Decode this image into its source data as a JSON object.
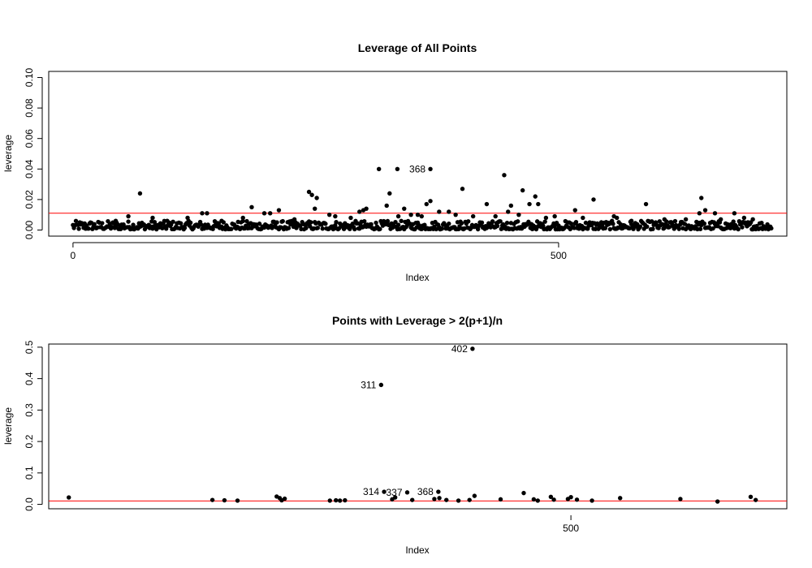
{
  "chart_data": [
    {
      "type": "scatter",
      "title": "Leverage of All Points",
      "xlabel": "Index",
      "ylabel": "leverage",
      "xlim": [
        -25,
        735
      ],
      "ylim": [
        -0.004,
        0.104
      ],
      "x_ticks": [
        0,
        500
      ],
      "y_ticks": [
        0.0,
        0.02,
        0.04,
        0.06,
        0.08,
        0.1
      ],
      "y_tick_labels": [
        "0.00",
        "0.02",
        "0.04",
        "0.06",
        "0.08",
        "0.10"
      ],
      "hline": {
        "y": 0.011,
        "color": "#ff0000"
      },
      "labels": [
        {
          "text": "368",
          "x": 368,
          "y": 0.04
        }
      ],
      "points": [
        [
          69,
          0.024
        ],
        [
          184,
          0.015
        ],
        [
          243,
          0.025
        ],
        [
          246,
          0.023
        ],
        [
          251,
          0.021
        ],
        [
          249,
          0.014
        ],
        [
          315,
          0.04
        ],
        [
          334,
          0.04
        ],
        [
          368,
          0.04
        ],
        [
          326,
          0.024
        ],
        [
          323,
          0.016
        ],
        [
          341,
          0.014
        ],
        [
          364,
          0.017
        ],
        [
          368,
          0.019
        ],
        [
          377,
          0.012
        ],
        [
          387,
          0.012
        ],
        [
          401,
          0.027
        ],
        [
          426,
          0.017
        ],
        [
          444,
          0.036
        ],
        [
          451,
          0.016
        ],
        [
          448,
          0.012
        ],
        [
          463,
          0.026
        ],
        [
          476,
          0.022
        ],
        [
          470,
          0.017
        ],
        [
          479,
          0.017
        ],
        [
          517,
          0.013
        ],
        [
          536,
          0.02
        ],
        [
          557,
          0.009
        ],
        [
          590,
          0.017
        ],
        [
          645,
          0.011
        ],
        [
          647,
          0.021
        ],
        [
          651,
          0.013
        ],
        [
          661,
          0.011
        ],
        [
          681,
          0.011
        ],
        [
          691,
          0.008
        ],
        [
          133,
          0.011
        ],
        [
          138,
          0.011
        ],
        [
          212,
          0.013
        ],
        [
          299,
          0.013
        ],
        [
          302,
          0.014
        ],
        [
          295,
          0.012
        ],
        [
          286,
          0.008
        ],
        [
          203,
          0.011
        ],
        [
          153,
          0.006
        ],
        [
          175,
          0.008
        ],
        [
          228,
          0.007
        ],
        [
          270,
          0.009
        ],
        [
          394,
          0.01
        ],
        [
          412,
          0.009
        ],
        [
          435,
          0.009
        ],
        [
          487,
          0.008
        ],
        [
          525,
          0.008
        ],
        [
          560,
          0.008
        ],
        [
          609,
          0.007
        ],
        [
          631,
          0.007
        ],
        [
          667,
          0.007
        ],
        [
          700,
          0.007
        ],
        [
          57,
          0.009
        ],
        [
          82,
          0.008
        ],
        [
          44,
          0.006
        ],
        [
          97,
          0.006
        ],
        [
          118,
          0.008
        ],
        [
          197,
          0.011
        ],
        [
          348,
          0.01
        ],
        [
          335,
          0.009
        ],
        [
          355,
          0.01
        ],
        [
          359,
          0.009
        ],
        [
          264,
          0.01
        ],
        [
          459,
          0.01
        ],
        [
          496,
          0.009
        ],
        [
          532,
          0.005
        ],
        [
          575,
          0.006
        ]
      ],
      "base_n": 720,
      "base_range": [
        0.0005,
        0.006
      ]
    },
    {
      "type": "scatter",
      "title": "Points with Leverage > 2(p+1)/n",
      "xlabel": "Index",
      "ylabel": "leverage",
      "xlim": [
        -20,
        715
      ],
      "ylim": [
        -0.014,
        0.51
      ],
      "x_ticks": [
        500
      ],
      "y_ticks": [
        0.0,
        0.1,
        0.2,
        0.3,
        0.4,
        0.5
      ],
      "y_tick_labels": [
        "0.0",
        "0.1",
        "0.2",
        "0.3",
        "0.4",
        "0.5"
      ],
      "hline": {
        "y": 0.011,
        "color": "#ff0000"
      },
      "labels": [
        {
          "text": "402",
          "x": 402,
          "y": 0.495
        },
        {
          "text": "311",
          "x": 311,
          "y": 0.38
        },
        {
          "text": "314",
          "x": 314,
          "y": 0.04
        },
        {
          "text": "337",
          "x": 337,
          "y": 0.038
        },
        {
          "text": "368",
          "x": 368,
          "y": 0.04
        }
      ],
      "points": [
        [
          0,
          0.022
        ],
        [
          143,
          0.014
        ],
        [
          155,
          0.013
        ],
        [
          168,
          0.012
        ],
        [
          207,
          0.025
        ],
        [
          210,
          0.02
        ],
        [
          212,
          0.013
        ],
        [
          215,
          0.018
        ],
        [
          260,
          0.012
        ],
        [
          266,
          0.013
        ],
        [
          270,
          0.012
        ],
        [
          275,
          0.013
        ],
        [
          311,
          0.38
        ],
        [
          314,
          0.04
        ],
        [
          322,
          0.016
        ],
        [
          325,
          0.022
        ],
        [
          337,
          0.038
        ],
        [
          342,
          0.014
        ],
        [
          364,
          0.017
        ],
        [
          368,
          0.04
        ],
        [
          369,
          0.02
        ],
        [
          376,
          0.014
        ],
        [
          388,
          0.012
        ],
        [
          399,
          0.014
        ],
        [
          402,
          0.495
        ],
        [
          404,
          0.027
        ],
        [
          430,
          0.016
        ],
        [
          453,
          0.036
        ],
        [
          463,
          0.016
        ],
        [
          467,
          0.012
        ],
        [
          480,
          0.024
        ],
        [
          483,
          0.015
        ],
        [
          497,
          0.017
        ],
        [
          500,
          0.023
        ],
        [
          506,
          0.015
        ],
        [
          521,
          0.012
        ],
        [
          549,
          0.02
        ],
        [
          609,
          0.017
        ],
        [
          646,
          0.009
        ],
        [
          679,
          0.024
        ],
        [
          684,
          0.014
        ]
      ]
    }
  ]
}
